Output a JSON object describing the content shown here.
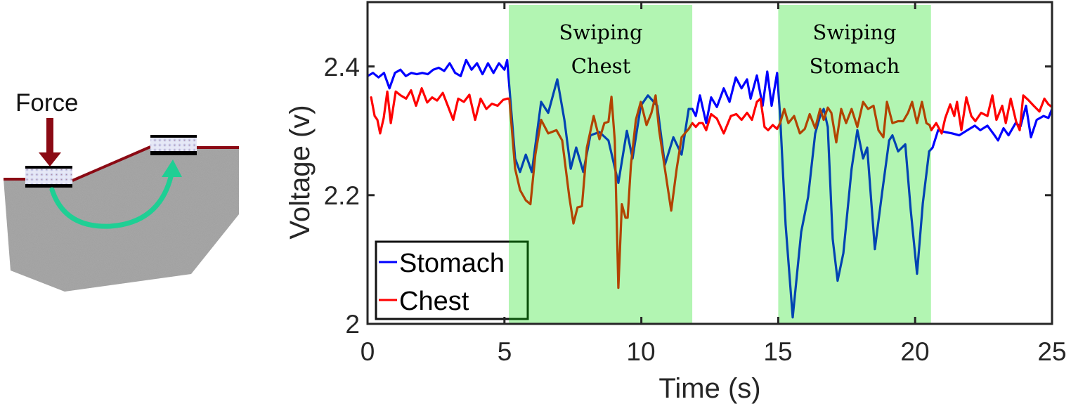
{
  "diagram": {
    "force_label": "Force",
    "colors": {
      "force_arrow": "#8b0a14",
      "surface_line": "#8b0a14",
      "tissue": "#9a9a9a",
      "transfer_arrow": "#1fcf94",
      "pad_body": "#dfe3f5",
      "pad_bar": "#000000"
    },
    "icons": [
      "force-arrow-icon",
      "transfer-arrow-icon",
      "sensor-pad-icon"
    ]
  },
  "chart_data": {
    "type": "line",
    "title": "",
    "xlabel": "Time (s)",
    "ylabel": "Voltage (v)",
    "xlim": [
      0,
      25
    ],
    "ylim": [
      2,
      2.5
    ],
    "xticks": [
      0,
      5,
      10,
      15,
      20,
      25
    ],
    "xtick_labels": [
      "0",
      "5",
      "10",
      "15",
      "20",
      "25"
    ],
    "yticks": [
      2,
      2.2,
      2.4
    ],
    "ytick_labels": [
      "2",
      "2.2",
      "2.4"
    ],
    "grid": false,
    "legend": {
      "placement": "bottom-left",
      "entries": [
        "Stomach",
        "Chest"
      ]
    },
    "regions": [
      {
        "x0": 5.16,
        "x1": 11.86,
        "label_lines": [
          "Swiping",
          "Chest"
        ],
        "color": "#00dd00",
        "opacity": 0.3
      },
      {
        "x0": 15.0,
        "x1": 20.58,
        "label_lines": [
          "Swiping",
          "Stomach"
        ],
        "color": "#00dd00",
        "opacity": 0.3
      }
    ],
    "series": [
      {
        "name": "Stomach",
        "color": "#0000ff",
        "points": [
          [
            0,
            2.385
          ],
          [
            0.2,
            2.39
          ],
          [
            0.4,
            2.383
          ],
          [
            0.6,
            2.39
          ],
          [
            0.8,
            2.366
          ],
          [
            1.0,
            2.39
          ],
          [
            1.2,
            2.395
          ],
          [
            1.4,
            2.385
          ],
          [
            1.6,
            2.39
          ],
          [
            1.8,
            2.388
          ],
          [
            2.0,
            2.39
          ],
          [
            2.2,
            2.388
          ],
          [
            2.4,
            2.395
          ],
          [
            2.6,
            2.398
          ],
          [
            2.8,
            2.393
          ],
          [
            3.0,
            2.405
          ],
          [
            3.2,
            2.39
          ],
          [
            3.4,
            2.385
          ],
          [
            3.6,
            2.41
          ],
          [
            3.8,
            2.395
          ],
          [
            4.0,
            2.405
          ],
          [
            4.2,
            2.388
          ],
          [
            4.4,
            2.405
          ],
          [
            4.6,
            2.39
          ],
          [
            4.8,
            2.405
          ],
          [
            5.0,
            2.395
          ],
          [
            5.1,
            2.41
          ],
          [
            5.39,
            2.257
          ],
          [
            5.57,
            2.236
          ],
          [
            5.78,
            2.263
          ],
          [
            6.0,
            2.236
          ],
          [
            6.34,
            2.345
          ],
          [
            6.6,
            2.328
          ],
          [
            6.93,
            2.38
          ],
          [
            7.19,
            2.317
          ],
          [
            7.42,
            2.241
          ],
          [
            7.62,
            2.274
          ],
          [
            7.88,
            2.236
          ],
          [
            8.14,
            2.293
          ],
          [
            8.47,
            2.298
          ],
          [
            8.8,
            2.285
          ],
          [
            9.16,
            2.219
          ],
          [
            9.47,
            2.3
          ],
          [
            9.68,
            2.257
          ],
          [
            9.98,
            2.339
          ],
          [
            10.24,
            2.355
          ],
          [
            10.58,
            2.339
          ],
          [
            10.86,
            2.247
          ],
          [
            11.17,
            2.29
          ],
          [
            11.47,
            2.263
          ],
          [
            11.73,
            2.334
          ],
          [
            11.86,
            2.334
          ],
          [
            11.99,
            2.323
          ],
          [
            12.14,
            2.355
          ],
          [
            12.37,
            2.312
          ],
          [
            12.55,
            2.352
          ],
          [
            12.76,
            2.337
          ],
          [
            13.01,
            2.366
          ],
          [
            13.22,
            2.345
          ],
          [
            13.45,
            2.383
          ],
          [
            13.66,
            2.366
          ],
          [
            13.86,
            2.38
          ],
          [
            13.99,
            2.35
          ],
          [
            14.22,
            2.386
          ],
          [
            14.43,
            2.339
          ],
          [
            14.6,
            2.392
          ],
          [
            14.76,
            2.339
          ],
          [
            14.96,
            2.39
          ],
          [
            15.07,
            2.323
          ],
          [
            15.27,
            2.154
          ],
          [
            15.53,
            2.01
          ],
          [
            15.84,
            2.143
          ],
          [
            16.09,
            2.197
          ],
          [
            16.35,
            2.296
          ],
          [
            16.53,
            2.323
          ],
          [
            16.66,
            2.334
          ],
          [
            16.81,
            2.306
          ],
          [
            16.99,
            2.132
          ],
          [
            17.17,
            2.067
          ],
          [
            17.38,
            2.11
          ],
          [
            17.68,
            2.241
          ],
          [
            17.89,
            2.301
          ],
          [
            18.1,
            2.257
          ],
          [
            18.25,
            2.274
          ],
          [
            18.53,
            2.116
          ],
          [
            18.79,
            2.203
          ],
          [
            19.05,
            2.285
          ],
          [
            19.17,
            2.293
          ],
          [
            19.38,
            2.268
          ],
          [
            19.64,
            2.279
          ],
          [
            19.84,
            2.176
          ],
          [
            20.07,
            2.078
          ],
          [
            20.28,
            2.187
          ],
          [
            20.51,
            2.268
          ],
          [
            20.64,
            2.274
          ],
          [
            20.84,
            2.301
          ],
          [
            21.1,
            2.298
          ],
          [
            21.36,
            2.296
          ],
          [
            21.61,
            2.293
          ],
          [
            21.87,
            2.3
          ],
          [
            22.18,
            2.308
          ],
          [
            22.38,
            2.301
          ],
          [
            22.64,
            2.308
          ],
          [
            22.9,
            2.293
          ],
          [
            23.03,
            2.285
          ],
          [
            23.23,
            2.304
          ],
          [
            23.41,
            2.293
          ],
          [
            23.67,
            2.312
          ],
          [
            23.85,
            2.307
          ],
          [
            24.05,
            2.339
          ],
          [
            24.23,
            2.29
          ],
          [
            24.44,
            2.317
          ],
          [
            24.69,
            2.323
          ],
          [
            24.87,
            2.32
          ],
          [
            25.0,
            2.334
          ]
        ]
      },
      {
        "name": "Chest",
        "color": "#ff0000",
        "points": [
          [
            0.13,
            2.352
          ],
          [
            0.26,
            2.323
          ],
          [
            0.36,
            2.317
          ],
          [
            0.46,
            2.296
          ],
          [
            0.59,
            2.32
          ],
          [
            0.72,
            2.361
          ],
          [
            0.85,
            2.312
          ],
          [
            1.03,
            2.361
          ],
          [
            1.21,
            2.355
          ],
          [
            1.41,
            2.35
          ],
          [
            1.59,
            2.363
          ],
          [
            1.77,
            2.339
          ],
          [
            1.98,
            2.366
          ],
          [
            2.18,
            2.344
          ],
          [
            2.36,
            2.352
          ],
          [
            2.54,
            2.347
          ],
          [
            2.75,
            2.359
          ],
          [
            2.93,
            2.339
          ],
          [
            3.13,
            2.317
          ],
          [
            3.31,
            2.35
          ],
          [
            3.52,
            2.345
          ],
          [
            3.72,
            2.356
          ],
          [
            3.93,
            2.317
          ],
          [
            4.13,
            2.35
          ],
          [
            4.34,
            2.334
          ],
          [
            4.54,
            2.342
          ],
          [
            4.75,
            2.339
          ],
          [
            4.95,
            2.348
          ],
          [
            5.1,
            2.35
          ],
          [
            5.18,
            2.35
          ],
          [
            5.39,
            2.241
          ],
          [
            5.57,
            2.208
          ],
          [
            5.78,
            2.192
          ],
          [
            5.95,
            2.186
          ],
          [
            6.13,
            2.263
          ],
          [
            6.34,
            2.317
          ],
          [
            6.6,
            2.296
          ],
          [
            6.9,
            2.301
          ],
          [
            7.11,
            2.285
          ],
          [
            7.37,
            2.197
          ],
          [
            7.52,
            2.156
          ],
          [
            7.67,
            2.181
          ],
          [
            7.83,
            2.183
          ],
          [
            8.01,
            2.274
          ],
          [
            8.26,
            2.323
          ],
          [
            8.47,
            2.287
          ],
          [
            8.65,
            2.312
          ],
          [
            8.8,
            2.314
          ],
          [
            8.91,
            2.353
          ],
          [
            9.03,
            2.285
          ],
          [
            9.16,
            2.056
          ],
          [
            9.29,
            2.186
          ],
          [
            9.42,
            2.165
          ],
          [
            9.5,
            2.165
          ],
          [
            9.62,
            2.247
          ],
          [
            9.8,
            2.317
          ],
          [
            9.98,
            2.345
          ],
          [
            10.19,
            2.309
          ],
          [
            10.37,
            2.328
          ],
          [
            10.52,
            2.355
          ],
          [
            10.65,
            2.301
          ],
          [
            10.86,
            2.241
          ],
          [
            11.09,
            2.176
          ],
          [
            11.29,
            2.241
          ],
          [
            11.47,
            2.29
          ],
          [
            11.73,
            2.303
          ],
          [
            11.86,
            2.312
          ],
          [
            11.99,
            2.306
          ],
          [
            12.11,
            2.312
          ],
          [
            12.24,
            2.312
          ],
          [
            12.37,
            2.301
          ],
          [
            12.55,
            2.326
          ],
          [
            12.76,
            2.319
          ],
          [
            13.01,
            2.296
          ],
          [
            13.27,
            2.323
          ],
          [
            13.47,
            2.326
          ],
          [
            13.66,
            2.317
          ],
          [
            13.86,
            2.328
          ],
          [
            14.04,
            2.317
          ],
          [
            14.22,
            2.345
          ],
          [
            14.35,
            2.35
          ],
          [
            14.5,
            2.306
          ],
          [
            14.63,
            2.301
          ],
          [
            14.8,
            2.309
          ],
          [
            14.96,
            2.303
          ],
          [
            15.07,
            2.312
          ],
          [
            15.22,
            2.334
          ],
          [
            15.37,
            2.312
          ],
          [
            15.58,
            2.323
          ],
          [
            15.79,
            2.296
          ],
          [
            15.97,
            2.303
          ],
          [
            16.15,
            2.326
          ],
          [
            16.35,
            2.304
          ],
          [
            16.53,
            2.334
          ],
          [
            16.66,
            2.317
          ],
          [
            16.81,
            2.336
          ],
          [
            16.94,
            2.328
          ],
          [
            17.12,
            2.282
          ],
          [
            17.3,
            2.334
          ],
          [
            17.48,
            2.312
          ],
          [
            17.68,
            2.334
          ],
          [
            17.89,
            2.306
          ],
          [
            18.1,
            2.345
          ],
          [
            18.28,
            2.334
          ],
          [
            18.48,
            2.339
          ],
          [
            18.66,
            2.301
          ],
          [
            18.84,
            2.29
          ],
          [
            18.97,
            2.345
          ],
          [
            19.17,
            2.312
          ],
          [
            19.38,
            2.315
          ],
          [
            19.56,
            2.315
          ],
          [
            19.74,
            2.328
          ],
          [
            19.89,
            2.345
          ],
          [
            20.07,
            2.312
          ],
          [
            20.25,
            2.345
          ],
          [
            20.41,
            2.312
          ],
          [
            20.53,
            2.309
          ],
          [
            20.59,
            2.301
          ],
          [
            20.77,
            2.312
          ],
          [
            20.97,
            2.296
          ],
          [
            21.1,
            2.32
          ],
          [
            21.28,
            2.341
          ],
          [
            21.43,
            2.323
          ],
          [
            21.53,
            2.345
          ],
          [
            21.69,
            2.301
          ],
          [
            21.87,
            2.352
          ],
          [
            22.05,
            2.323
          ],
          [
            22.2,
            2.315
          ],
          [
            22.41,
            2.328
          ],
          [
            22.64,
            2.323
          ],
          [
            22.82,
            2.355
          ],
          [
            22.97,
            2.317
          ],
          [
            23.18,
            2.339
          ],
          [
            23.31,
            2.312
          ],
          [
            23.49,
            2.35
          ],
          [
            23.69,
            2.314
          ],
          [
            23.82,
            2.301
          ],
          [
            23.95,
            2.355
          ],
          [
            24.13,
            2.348
          ],
          [
            24.33,
            2.339
          ],
          [
            24.54,
            2.33
          ],
          [
            24.72,
            2.35
          ],
          [
            24.87,
            2.341
          ],
          [
            25.0,
            2.337
          ]
        ]
      }
    ]
  }
}
